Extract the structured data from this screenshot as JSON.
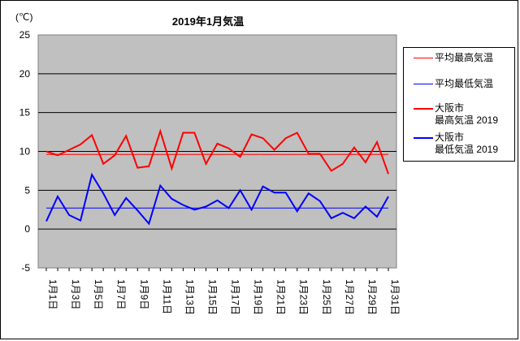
{
  "chart_data": {
    "type": "line",
    "title": "2019年1月気温",
    "unit_label": "(℃)",
    "ylim": [
      -5,
      25
    ],
    "yticks": [
      -5,
      0,
      5,
      10,
      15,
      20,
      25
    ],
    "grid": true,
    "legend_position": "right",
    "x": [
      "1月1日",
      "1月2日",
      "1月3日",
      "1月4日",
      "1月5日",
      "1月6日",
      "1月7日",
      "1月8日",
      "1月9日",
      "1月10日",
      "1月11日",
      "1月12日",
      "1月13日",
      "1月14日",
      "1月15日",
      "1月16日",
      "1月17日",
      "1月18日",
      "1月19日",
      "1月20日",
      "1月21日",
      "1月22日",
      "1月23日",
      "1月24日",
      "1月25日",
      "1月26日",
      "1月27日",
      "1月28日",
      "1月29日",
      "1月30日",
      "1月31日"
    ],
    "xtick_labels": [
      "1月1日",
      "1月3日",
      "1月5日",
      "1月7日",
      "1月9日",
      "1月11日",
      "1月13日",
      "1月15日",
      "1月17日",
      "1月19日",
      "1月21日",
      "1月23日",
      "1月25日",
      "1月27日",
      "1月29日",
      "1月31日"
    ],
    "series": [
      {
        "name": "平均最高気温",
        "color": "#ff0000",
        "style": "thin",
        "values": [
          9.6,
          9.6,
          9.6,
          9.6,
          9.6,
          9.6,
          9.6,
          9.6,
          9.6,
          9.6,
          9.6,
          9.6,
          9.6,
          9.6,
          9.6,
          9.6,
          9.6,
          9.6,
          9.6,
          9.6,
          9.6,
          9.6,
          9.6,
          9.6,
          9.6,
          9.6,
          9.6,
          9.6,
          9.6,
          9.6,
          9.6
        ]
      },
      {
        "name": "平均最低気温",
        "color": "#0000ff",
        "style": "thin",
        "values": [
          2.7,
          2.7,
          2.7,
          2.7,
          2.7,
          2.7,
          2.7,
          2.7,
          2.7,
          2.7,
          2.7,
          2.7,
          2.7,
          2.7,
          2.7,
          2.7,
          2.7,
          2.7,
          2.7,
          2.7,
          2.7,
          2.7,
          2.7,
          2.7,
          2.7,
          2.7,
          2.7,
          2.7,
          2.7,
          2.7,
          2.7
        ]
      },
      {
        "name": "大阪市\n最高気温 2019",
        "color": "#ff0000",
        "style": "thick",
        "values": [
          10.0,
          9.5,
          10.2,
          10.9,
          12.1,
          8.4,
          9.5,
          12.0,
          7.9,
          8.1,
          12.6,
          7.8,
          12.4,
          12.4,
          8.4,
          11.0,
          10.4,
          9.3,
          12.2,
          11.7,
          10.2,
          11.7,
          12.4,
          9.7,
          9.7,
          7.5,
          8.4,
          10.5,
          8.6,
          11.2,
          7.1
        ]
      },
      {
        "name": "大阪市\n最低気温 2019",
        "color": "#0000ff",
        "style": "thick",
        "values": [
          1.0,
          4.2,
          1.8,
          1.1,
          7.0,
          4.6,
          1.8,
          4.0,
          2.4,
          0.7,
          5.6,
          3.9,
          3.1,
          2.5,
          2.9,
          3.7,
          2.7,
          5.0,
          2.5,
          5.5,
          4.7,
          4.7,
          2.3,
          4.6,
          3.6,
          1.4,
          2.1,
          1.4,
          2.9,
          1.6,
          4.2
        ]
      }
    ]
  }
}
